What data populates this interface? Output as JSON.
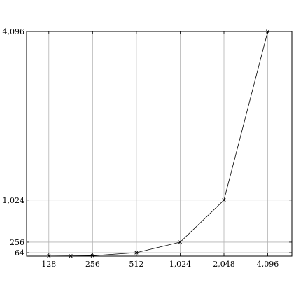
{
  "chart_data": {
    "type": "line",
    "title": "",
    "xlabel": "",
    "ylabel": "",
    "x_scale": "log2",
    "xlim": [
      90,
      6000
    ],
    "ylim": [
      0,
      4096
    ],
    "x_ticks": [
      128,
      256,
      512,
      1024,
      2048,
      4096
    ],
    "x_tick_labels": [
      "128",
      "256",
      "512",
      "1,024",
      "2,048",
      "4,096"
    ],
    "y_ticks": [
      64,
      256,
      1024,
      4096
    ],
    "y_tick_labels": [
      "64",
      "256",
      "1,024",
      "4,096"
    ],
    "grid": true,
    "legend": "none",
    "series": [
      {
        "marker": "x",
        "color": "#000000",
        "points": [
          {
            "x": 128,
            "y": 2
          },
          {
            "x": 181,
            "y": 4
          },
          {
            "x": 256,
            "y": 8
          },
          {
            "x": 512,
            "y": 64
          },
          {
            "x": 1024,
            "y": 256
          },
          {
            "x": 2048,
            "y": 1024
          },
          {
            "x": 4096,
            "y": 4096
          }
        ]
      }
    ]
  }
}
